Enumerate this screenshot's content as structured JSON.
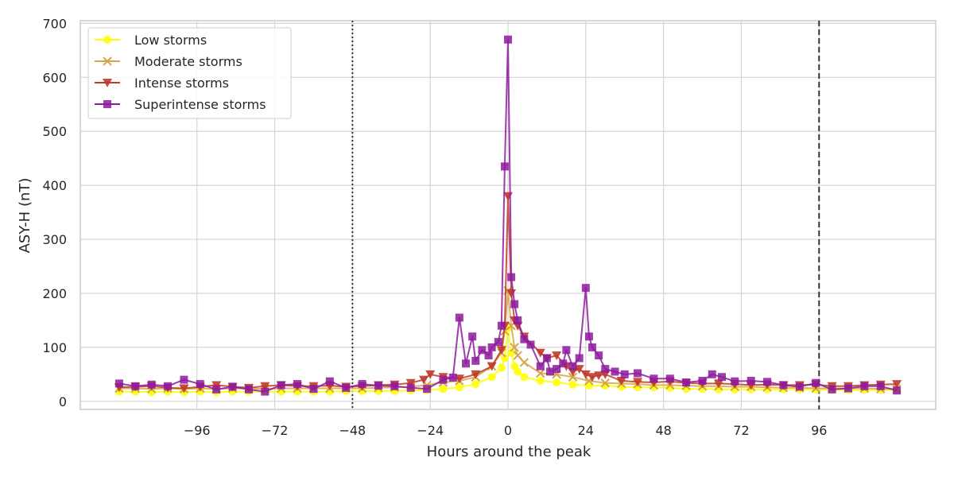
{
  "chart_data": {
    "type": "line",
    "xlabel": "Hours around the peak",
    "ylabel": "ASY-H (nT)",
    "xlim": [
      -132,
      132
    ],
    "ylim": [
      -15,
      705
    ],
    "xticks": [
      -96,
      -72,
      -48,
      -24,
      0,
      24,
      48,
      72,
      96
    ],
    "xtick_labels": [
      "−96",
      "−72",
      "−48",
      "−24",
      "0",
      "24",
      "48",
      "72",
      "96"
    ],
    "yticks": [
      0,
      100,
      200,
      300,
      400,
      500,
      600,
      700
    ],
    "ytick_labels": [
      "0",
      "100",
      "200",
      "300",
      "400",
      "500",
      "600",
      "700"
    ],
    "grid": true,
    "legend_position": "top-left",
    "vlines": [
      {
        "x": -48,
        "style": "dotted",
        "color": "#333333"
      },
      {
        "x": 96,
        "style": "dashed",
        "color": "#333333"
      }
    ],
    "series": [
      {
        "name": "Low storms",
        "color": "#ffff00",
        "marker": "circle",
        "x": [
          -120,
          -115,
          -110,
          -105,
          -100,
          -95,
          -90,
          -85,
          -80,
          -75,
          -70,
          -65,
          -60,
          -55,
          -50,
          -45,
          -40,
          -35,
          -30,
          -25,
          -20,
          -15,
          -10,
          -5,
          -2,
          -1,
          0,
          1,
          2,
          3,
          5,
          10,
          15,
          20,
          25,
          30,
          35,
          40,
          45,
          50,
          55,
          60,
          65,
          70,
          75,
          80,
          85,
          90,
          95,
          100,
          105,
          110,
          115,
          120
        ],
        "y": [
          18,
          18,
          17,
          18,
          17,
          18,
          17,
          18,
          18,
          18,
          18,
          18,
          18,
          18,
          19,
          19,
          19,
          19,
          20,
          21,
          23,
          26,
          32,
          45,
          62,
          80,
          135,
          90,
          65,
          55,
          45,
          38,
          35,
          31,
          29,
          29,
          27,
          26,
          26,
          25,
          23,
          23,
          22,
          22,
          22,
          22,
          22,
          22,
          22,
          21,
          21,
          21,
          21,
          21
        ]
      },
      {
        "name": "Moderate storms",
        "color": "#d4a64a",
        "marker": "x",
        "x": [
          -120,
          -115,
          -110,
          -105,
          -100,
          -95,
          -90,
          -85,
          -80,
          -75,
          -70,
          -65,
          -60,
          -55,
          -50,
          -45,
          -40,
          -35,
          -30,
          -25,
          -20,
          -15,
          -10,
          -5,
          -2,
          -1,
          0,
          1,
          2,
          3,
          5,
          10,
          15,
          20,
          25,
          30,
          35,
          40,
          45,
          50,
          55,
          60,
          65,
          70,
          75,
          80,
          85,
          90,
          95,
          100,
          105,
          110,
          115,
          120
        ],
        "y": [
          24,
          24,
          23,
          24,
          23,
          24,
          23,
          24,
          24,
          23,
          24,
          24,
          24,
          24,
          24,
          24,
          25,
          26,
          27,
          30,
          35,
          38,
          45,
          65,
          90,
          130,
          205,
          140,
          100,
          85,
          72,
          52,
          50,
          45,
          38,
          34,
          33,
          32,
          30,
          30,
          29,
          28,
          28,
          27,
          27,
          26,
          25,
          25,
          24,
          24,
          24,
          24,
          23,
          23
        ]
      },
      {
        "name": "Intense storms",
        "color": "#c0392b",
        "marker": "triangle",
        "x": [
          -120,
          -115,
          -110,
          -105,
          -100,
          -95,
          -90,
          -85,
          -80,
          -75,
          -70,
          -65,
          -60,
          -55,
          -50,
          -45,
          -40,
          -35,
          -30,
          -26,
          -24,
          -20,
          -15,
          -10,
          -5,
          -2,
          -1,
          0,
          1,
          2,
          3,
          5,
          10,
          12,
          15,
          18,
          20,
          22,
          24,
          26,
          28,
          30,
          35,
          40,
          45,
          50,
          55,
          60,
          65,
          70,
          75,
          80,
          85,
          90,
          95,
          100,
          105,
          110,
          115,
          120
        ],
        "y": [
          26,
          27,
          28,
          25,
          24,
          27,
          30,
          27,
          25,
          28,
          30,
          28,
          28,
          29,
          27,
          28,
          30,
          31,
          34,
          40,
          50,
          45,
          42,
          50,
          65,
          95,
          140,
          380,
          200,
          150,
          140,
          120,
          90,
          80,
          85,
          65,
          55,
          60,
          50,
          45,
          48,
          50,
          38,
          36,
          35,
          37,
          34,
          33,
          33,
          32,
          30,
          31,
          30,
          30,
          31,
          28,
          28,
          30,
          31,
          32
        ]
      },
      {
        "name": "Superintense storms",
        "color": "#8e1a9e",
        "marker": "square",
        "x": [
          -120,
          -115,
          -110,
          -105,
          -100,
          -95,
          -90,
          -85,
          -80,
          -75,
          -70,
          -65,
          -60,
          -55,
          -50,
          -45,
          -40,
          -35,
          -30,
          -25,
          -20,
          -17,
          -15,
          -13,
          -11,
          -10,
          -8,
          -6,
          -5,
          -3,
          -2,
          -1,
          0,
          1,
          2,
          3,
          5,
          7,
          10,
          12,
          13,
          15,
          17,
          18,
          20,
          22,
          24,
          25,
          26,
          28,
          30,
          33,
          36,
          40,
          45,
          50,
          55,
          60,
          63,
          66,
          70,
          75,
          80,
          85,
          90,
          95,
          100,
          105,
          110,
          115,
          120
        ],
        "y": [
          33,
          28,
          31,
          28,
          40,
          32,
          22,
          27,
          22,
          18,
          30,
          32,
          23,
          37,
          25,
          32,
          29,
          28,
          25,
          23,
          40,
          44,
          155,
          70,
          120,
          75,
          95,
          85,
          100,
          110,
          140,
          435,
          670,
          230,
          180,
          150,
          115,
          105,
          65,
          80,
          55,
          60,
          70,
          95,
          65,
          80,
          210,
          120,
          100,
          85,
          60,
          55,
          50,
          52,
          42,
          42,
          35,
          38,
          50,
          45,
          37,
          38,
          36,
          30,
          27,
          34,
          22,
          24,
          28,
          28,
          20
        ]
      }
    ]
  }
}
